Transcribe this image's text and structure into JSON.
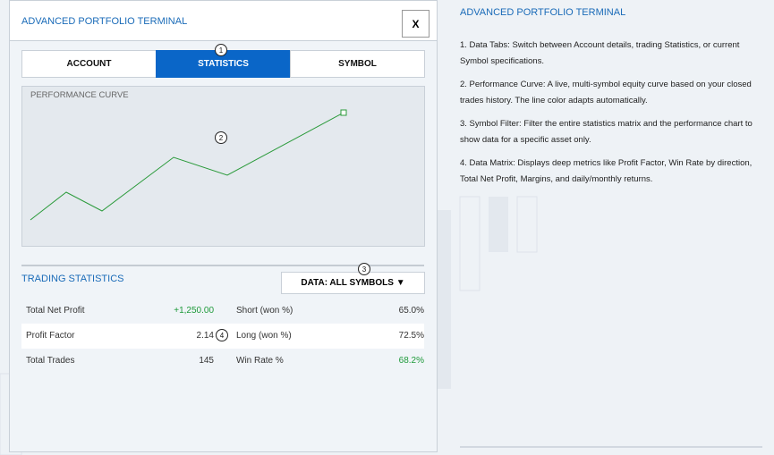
{
  "left_panel": {
    "title": "ADVANCED PORTFOLIO TERMINAL",
    "close": "X",
    "tabs": [
      "ACCOUNT",
      "STATISTICS",
      "SYMBOL"
    ],
    "chart_label": "PERFORMANCE CURVE",
    "section_title": "TRADING STATISTICS",
    "filter": "DATA: ALL SYMBOLS ▼",
    "table": {
      "rows": [
        [
          "Total Net Profit",
          "+1,250.00",
          "Short (won %)",
          "65.0%"
        ],
        [
          "Profit Factor",
          "2.14",
          "Long (won %)",
          "72.5%"
        ],
        [
          "Total Trades",
          "145",
          "Win Rate %",
          "68.2%"
        ]
      ]
    },
    "callouts": [
      "1",
      "2",
      "3",
      "4"
    ]
  },
  "right_panel": {
    "title": "ADVANCED PORTFOLIO TERMINAL",
    "items": [
      "1. Data Tabs: Switch between Account details, trading Statistics, or current Symbol specifications.",
      "2. Performance Curve: A live, multi-symbol equity curve based on your closed trades history. The line color adapts automatically.",
      "3. Symbol Filter: Filter the entire statistics matrix and the performance chart to show data for a specific asset only.",
      "4. Data Matrix: Displays deep metrics like Profit Factor, Win Rate by direction, Total Net Profit, Margins, and daily/monthly returns."
    ]
  }
}
